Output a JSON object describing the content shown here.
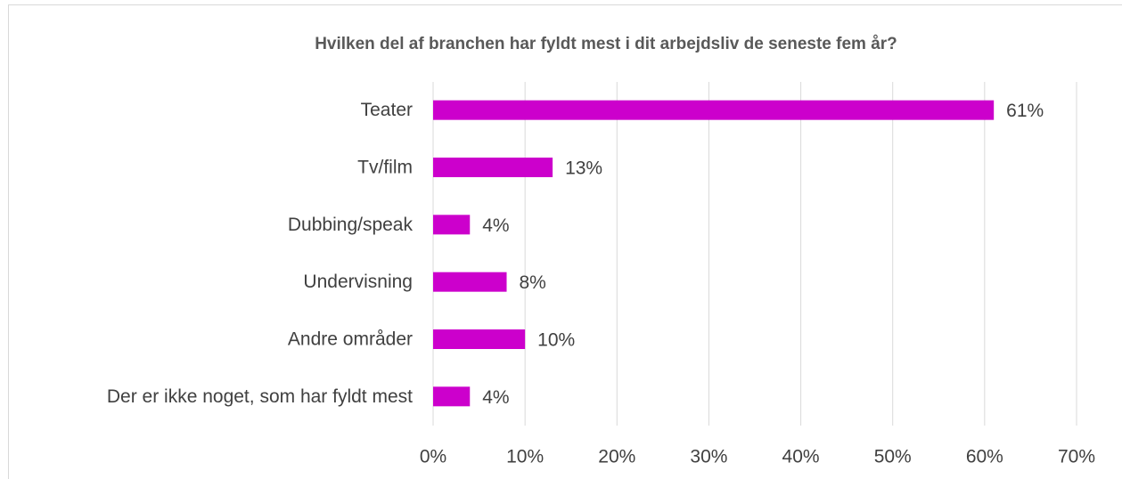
{
  "chart_data": {
    "type": "bar",
    "orientation": "horizontal",
    "title": "Hvilken del af branchen har fyldt mest i dit arbejdsliv de seneste fem år?",
    "categories": [
      "Teater",
      "Tv/film",
      "Dubbing/speak",
      "Undervisning",
      "Andre områder",
      "Der er ikke noget, som har fyldt mest"
    ],
    "values": [
      61,
      13,
      4,
      8,
      10,
      4
    ],
    "value_labels": [
      "61%",
      "13%",
      "4%",
      "8%",
      "10%",
      "4%"
    ],
    "color": "#cc00cc",
    "xlim": [
      0,
      70
    ],
    "xticks": [
      {
        "value": 0,
        "label": "0%"
      },
      {
        "value": 10,
        "label": "10%"
      },
      {
        "value": 20,
        "label": "20%"
      },
      {
        "value": 30,
        "label": "30%"
      },
      {
        "value": 40,
        "label": "40%"
      },
      {
        "value": 50,
        "label": "50%"
      },
      {
        "value": 60,
        "label": "60%"
      },
      {
        "value": 70,
        "label": "70%"
      }
    ],
    "grid": true
  }
}
